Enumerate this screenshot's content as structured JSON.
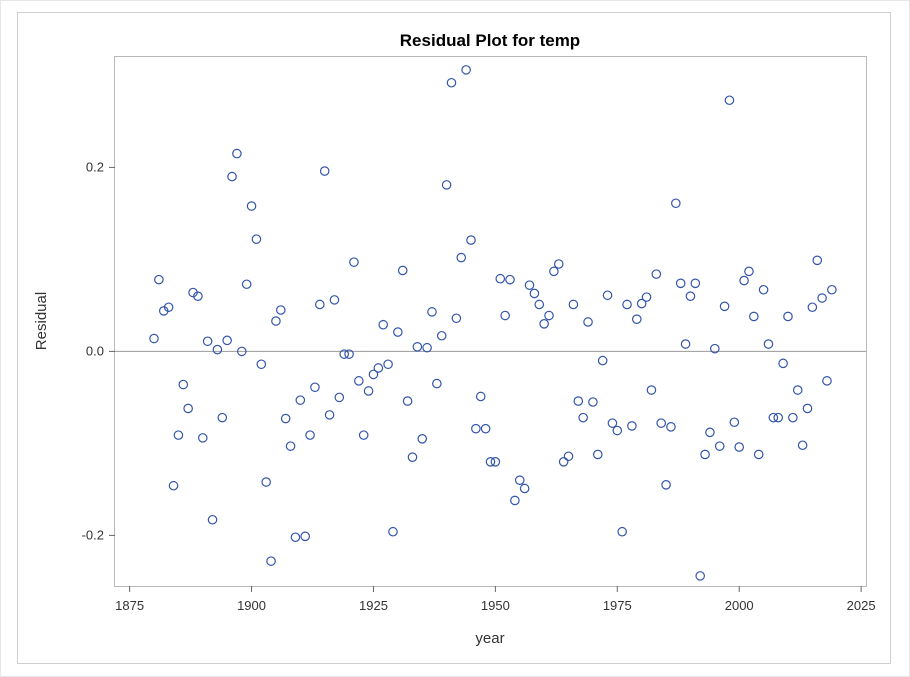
{
  "chart_data": {
    "type": "scatter",
    "title": "Residual Plot for temp",
    "xlabel": "year",
    "ylabel": "Residual",
    "xlim": [
      1872,
      2026
    ],
    "ylim": [
      -0.255,
      0.32
    ],
    "xticks": [
      1875,
      1900,
      1925,
      1950,
      1975,
      2000,
      2025
    ],
    "xtick_labels": [
      "1875",
      "1900",
      "1925",
      "1950",
      "1975",
      "2000",
      "2025"
    ],
    "yticks": [
      -0.2,
      0.0,
      0.2
    ],
    "ytick_labels": [
      "-0.2",
      "0.0",
      "0.2"
    ],
    "reference_line_y": 0.0,
    "grid": false,
    "marker": "open-circle",
    "marker_color": "#3355aa",
    "reference_line_color": "#999999",
    "points": [
      [
        1880,
        0.014
      ],
      [
        1881,
        0.078
      ],
      [
        1882,
        0.044
      ],
      [
        1883,
        0.048
      ],
      [
        1884,
        -0.146
      ],
      [
        1885,
        -0.091
      ],
      [
        1886,
        -0.036
      ],
      [
        1887,
        -0.062
      ],
      [
        1888,
        0.064
      ],
      [
        1889,
        0.06
      ],
      [
        1890,
        -0.094
      ],
      [
        1891,
        0.011
      ],
      [
        1892,
        -0.183
      ],
      [
        1893,
        0.002
      ],
      [
        1894,
        -0.072
      ],
      [
        1895,
        0.012
      ],
      [
        1896,
        0.19
      ],
      [
        1897,
        0.215
      ],
      [
        1898,
        0.0
      ],
      [
        1899,
        0.073
      ],
      [
        1900,
        0.158
      ],
      [
        1901,
        0.122
      ],
      [
        1902,
        -0.014
      ],
      [
        1903,
        -0.142
      ],
      [
        1904,
        -0.228
      ],
      [
        1905,
        0.033
      ],
      [
        1906,
        0.045
      ],
      [
        1907,
        -0.073
      ],
      [
        1908,
        -0.103
      ],
      [
        1909,
        -0.202
      ],
      [
        1910,
        -0.053
      ],
      [
        1911,
        -0.201
      ],
      [
        1912,
        -0.091
      ],
      [
        1913,
        -0.039
      ],
      [
        1914,
        0.051
      ],
      [
        1915,
        0.196
      ],
      [
        1916,
        -0.069
      ],
      [
        1917,
        0.056
      ],
      [
        1918,
        -0.05
      ],
      [
        1919,
        -0.003
      ],
      [
        1920,
        -0.003
      ],
      [
        1921,
        0.097
      ],
      [
        1922,
        -0.032
      ],
      [
        1923,
        -0.091
      ],
      [
        1924,
        -0.043
      ],
      [
        1925,
        -0.025
      ],
      [
        1926,
        -0.018
      ],
      [
        1927,
        0.029
      ],
      [
        1928,
        -0.014
      ],
      [
        1929,
        -0.196
      ],
      [
        1930,
        0.021
      ],
      [
        1931,
        0.088
      ],
      [
        1932,
        -0.054
      ],
      [
        1933,
        -0.115
      ],
      [
        1934,
        0.005
      ],
      [
        1935,
        -0.095
      ],
      [
        1936,
        0.004
      ],
      [
        1937,
        0.043
      ],
      [
        1938,
        -0.035
      ],
      [
        1939,
        0.017
      ],
      [
        1940,
        0.181
      ],
      [
        1941,
        0.292
      ],
      [
        1942,
        0.036
      ],
      [
        1943,
        0.102
      ],
      [
        1944,
        0.306
      ],
      [
        1945,
        0.121
      ],
      [
        1946,
        -0.084
      ],
      [
        1947,
        -0.049
      ],
      [
        1948,
        -0.084
      ],
      [
        1949,
        -0.12
      ],
      [
        1950,
        -0.12
      ],
      [
        1951,
        0.079
      ],
      [
        1952,
        0.039
      ],
      [
        1953,
        0.078
      ],
      [
        1954,
        -0.162
      ],
      [
        1955,
        -0.14
      ],
      [
        1956,
        -0.149
      ],
      [
        1957,
        0.072
      ],
      [
        1958,
        0.063
      ],
      [
        1959,
        0.051
      ],
      [
        1960,
        0.03
      ],
      [
        1961,
        0.039
      ],
      [
        1962,
        0.087
      ],
      [
        1963,
        0.095
      ],
      [
        1964,
        -0.12
      ],
      [
        1965,
        -0.114
      ],
      [
        1966,
        0.051
      ],
      [
        1967,
        -0.054
      ],
      [
        1968,
        -0.072
      ],
      [
        1969,
        0.032
      ],
      [
        1970,
        -0.055
      ],
      [
        1971,
        -0.112
      ],
      [
        1972,
        -0.01
      ],
      [
        1973,
        0.061
      ],
      [
        1974,
        -0.078
      ],
      [
        1975,
        -0.086
      ],
      [
        1976,
        -0.196
      ],
      [
        1977,
        0.051
      ],
      [
        1978,
        -0.081
      ],
      [
        1979,
        0.035
      ],
      [
        1980,
        0.052
      ],
      [
        1981,
        0.059
      ],
      [
        1982,
        -0.042
      ],
      [
        1983,
        0.084
      ],
      [
        1984,
        -0.078
      ],
      [
        1985,
        -0.145
      ],
      [
        1986,
        -0.082
      ],
      [
        1987,
        0.161
      ],
      [
        1988,
        0.074
      ],
      [
        1989,
        0.008
      ],
      [
        1990,
        0.06
      ],
      [
        1991,
        0.074
      ],
      [
        1992,
        -0.244
      ],
      [
        1993,
        -0.112
      ],
      [
        1994,
        -0.088
      ],
      [
        1995,
        0.003
      ],
      [
        1996,
        -0.103
      ],
      [
        1997,
        0.049
      ],
      [
        1998,
        0.273
      ],
      [
        1999,
        -0.077
      ],
      [
        2000,
        -0.104
      ],
      [
        2001,
        0.077
      ],
      [
        2002,
        0.087
      ],
      [
        2003,
        0.038
      ],
      [
        2004,
        -0.112
      ],
      [
        2005,
        0.067
      ],
      [
        2006,
        0.008
      ],
      [
        2007,
        -0.072
      ],
      [
        2008,
        -0.072
      ],
      [
        2009,
        -0.013
      ],
      [
        2010,
        0.038
      ],
      [
        2011,
        -0.072
      ],
      [
        2012,
        -0.042
      ],
      [
        2013,
        -0.102
      ],
      [
        2014,
        -0.062
      ],
      [
        2015,
        0.048
      ],
      [
        2016,
        0.099
      ],
      [
        2017,
        0.058
      ],
      [
        2018,
        -0.032
      ],
      [
        2019,
        0.067
      ]
    ]
  }
}
